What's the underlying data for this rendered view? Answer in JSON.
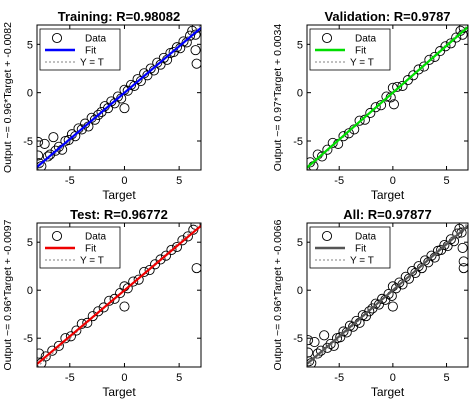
{
  "chart_data": [
    {
      "type": "scatter",
      "title": "Training: R=0.98082",
      "xlabel": "Target",
      "ylabel": "Output ~= 0.96*Target + -0.0082",
      "xlim": [
        -8,
        7
      ],
      "ylim": [
        -8,
        7
      ],
      "xticks": [
        -5,
        0,
        5
      ],
      "yticks": [
        -5,
        0,
        5
      ],
      "xtick_labels": [
        "-5",
        "0",
        "5"
      ],
      "ytick_labels": [
        "-5",
        "0",
        "5"
      ],
      "fit": {
        "slope": 0.96,
        "intercept": -0.0082,
        "color": "#0000ff"
      },
      "identity_line_color": "#808080",
      "legend": {
        "placement": "top-left",
        "entries": [
          "Data",
          "Fit",
          "Y = T"
        ]
      },
      "grid": false,
      "points": [
        [
          -7.9,
          -6.5
        ],
        [
          -7.9,
          -5.1
        ],
        [
          -7.8,
          -7.3
        ],
        [
          -7.6,
          -7.6
        ],
        [
          -7.3,
          -5.3
        ],
        [
          -7.0,
          -6.6
        ],
        [
          -6.8,
          -6.4
        ],
        [
          -6.5,
          -4.6
        ],
        [
          -6.3,
          -6.0
        ],
        [
          -6.0,
          -5.6
        ],
        [
          -5.7,
          -5.9
        ],
        [
          -5.4,
          -5.0
        ],
        [
          -5.1,
          -4.9
        ],
        [
          -4.8,
          -4.3
        ],
        [
          -4.5,
          -4.5
        ],
        [
          -4.2,
          -3.7
        ],
        [
          -3.9,
          -3.8
        ],
        [
          -3.6,
          -3.2
        ],
        [
          -3.3,
          -3.5
        ],
        [
          -3.0,
          -2.6
        ],
        [
          -2.7,
          -2.8
        ],
        [
          -2.4,
          -2.3
        ],
        [
          -2.1,
          -2.0
        ],
        [
          -1.8,
          -1.4
        ],
        [
          -1.5,
          -1.6
        ],
        [
          -1.2,
          -0.9
        ],
        [
          -0.9,
          -1.1
        ],
        [
          -0.6,
          -0.4
        ],
        [
          -0.3,
          -0.6
        ],
        [
          0.0,
          0.3
        ],
        [
          0.0,
          -1.6
        ],
        [
          0.3,
          0.2
        ],
        [
          0.6,
          0.8
        ],
        [
          0.9,
          0.7
        ],
        [
          1.2,
          1.4
        ],
        [
          1.5,
          1.2
        ],
        [
          1.8,
          2.0
        ],
        [
          2.1,
          1.8
        ],
        [
          2.4,
          2.5
        ],
        [
          2.7,
          2.3
        ],
        [
          3.0,
          3.1
        ],
        [
          3.3,
          2.9
        ],
        [
          3.6,
          3.6
        ],
        [
          3.9,
          3.4
        ],
        [
          4.2,
          4.1
        ],
        [
          4.5,
          4.2
        ],
        [
          4.8,
          4.7
        ],
        [
          5.1,
          4.6
        ],
        [
          5.4,
          5.3
        ],
        [
          5.7,
          5.2
        ],
        [
          6.0,
          5.9
        ],
        [
          6.2,
          6.4
        ],
        [
          6.5,
          6.0
        ],
        [
          6.5,
          4.4
        ],
        [
          6.6,
          3.0
        ],
        [
          6.6,
          6.7
        ]
      ]
    },
    {
      "type": "scatter",
      "title": "Validation: R=0.9787",
      "xlabel": "Target",
      "ylabel": "Output ~= 0.97*Target + 0.0034",
      "xlim": [
        -8,
        7
      ],
      "ylim": [
        -8,
        7
      ],
      "xticks": [
        -5,
        0,
        5
      ],
      "yticks": [
        -5,
        0,
        5
      ],
      "xtick_labels": [
        "-5",
        "0",
        "5"
      ],
      "ytick_labels": [
        "-5",
        "0",
        "5"
      ],
      "fit": {
        "slope": 0.97,
        "intercept": 0.0034,
        "color": "#00dd00"
      },
      "identity_line_color": "#808080",
      "legend": {
        "placement": "top-left",
        "entries": [
          "Data",
          "Fit",
          "Y = T"
        ]
      },
      "grid": false,
      "points": [
        [
          -7.7,
          -7.2
        ],
        [
          -7.4,
          -7.6
        ],
        [
          -7.0,
          -6.4
        ],
        [
          -6.6,
          -6.6
        ],
        [
          -6.1,
          -5.9
        ],
        [
          -5.6,
          -5.2
        ],
        [
          -5.1,
          -5.3
        ],
        [
          -4.6,
          -4.5
        ],
        [
          -4.1,
          -4.2
        ],
        [
          -3.6,
          -3.8
        ],
        [
          -3.1,
          -2.9
        ],
        [
          -2.6,
          -2.8
        ],
        [
          -2.1,
          -2.1
        ],
        [
          -1.6,
          -1.5
        ],
        [
          -1.1,
          -1.3
        ],
        [
          -0.6,
          -0.4
        ],
        [
          -0.2,
          -0.5
        ],
        [
          0.0,
          0.5
        ],
        [
          0.1,
          -1.2
        ],
        [
          0.4,
          0.6
        ],
        [
          0.9,
          0.7
        ],
        [
          1.4,
          1.3
        ],
        [
          1.9,
          1.8
        ],
        [
          2.4,
          2.4
        ],
        [
          2.9,
          2.7
        ],
        [
          3.4,
          3.4
        ],
        [
          3.9,
          3.7
        ],
        [
          4.4,
          4.3
        ],
        [
          4.9,
          4.8
        ],
        [
          5.4,
          5.1
        ],
        [
          5.9,
          5.7
        ],
        [
          6.3,
          6.4
        ],
        [
          6.5,
          6.0
        ],
        [
          6.6,
          6.7
        ]
      ]
    },
    {
      "type": "scatter",
      "title": "Test: R=0.96772",
      "xlabel": "Target",
      "ylabel": "Output ~= 0.96*Target + -0.0097",
      "xlim": [
        -8,
        7
      ],
      "ylim": [
        -8,
        7
      ],
      "xticks": [
        -5,
        0,
        5
      ],
      "yticks": [
        -5,
        0,
        5
      ],
      "xtick_labels": [
        "-5",
        "0",
        "5"
      ],
      "ytick_labels": [
        "-5",
        "0",
        "5"
      ],
      "fit": {
        "slope": 0.96,
        "intercept": -0.0097,
        "color": "#ee0000"
      },
      "identity_line_color": "#808080",
      "legend": {
        "placement": "top-left",
        "entries": [
          "Data",
          "Fit",
          "Y = T"
        ]
      },
      "grid": false,
      "points": [
        [
          -7.8,
          -6.6
        ],
        [
          -7.6,
          -7.6
        ],
        [
          -7.2,
          -6.9
        ],
        [
          -6.6,
          -6.3
        ],
        [
          -6.0,
          -5.8
        ],
        [
          -5.4,
          -5.0
        ],
        [
          -4.9,
          -4.8
        ],
        [
          -4.4,
          -4.2
        ],
        [
          -3.9,
          -3.5
        ],
        [
          -3.4,
          -3.4
        ],
        [
          -2.9,
          -2.7
        ],
        [
          -2.4,
          -2.2
        ],
        [
          -1.9,
          -1.8
        ],
        [
          -1.4,
          -1.1
        ],
        [
          -0.9,
          -0.9
        ],
        [
          -0.4,
          -0.3
        ],
        [
          0.0,
          0.4
        ],
        [
          0.0,
          -1.7
        ],
        [
          0.3,
          0.2
        ],
        [
          0.8,
          0.9
        ],
        [
          1.3,
          1.1
        ],
        [
          1.8,
          1.9
        ],
        [
          2.3,
          2.1
        ],
        [
          2.8,
          2.7
        ],
        [
          3.3,
          3.2
        ],
        [
          3.8,
          3.6
        ],
        [
          4.3,
          4.2
        ],
        [
          4.8,
          4.5
        ],
        [
          5.3,
          5.2
        ],
        [
          5.8,
          5.6
        ],
        [
          6.3,
          6.3
        ],
        [
          6.5,
          6.8
        ],
        [
          6.6,
          2.3
        ]
      ]
    },
    {
      "type": "scatter",
      "title": "All: R=0.97877",
      "xlabel": "Target",
      "ylabel": "Output ~= 0.96*Target + -0.0066",
      "xlim": [
        -8,
        7
      ],
      "ylim": [
        -8,
        7
      ],
      "xticks": [
        -5,
        0,
        5
      ],
      "yticks": [
        -5,
        0,
        5
      ],
      "xtick_labels": [
        "-5",
        "0",
        "5"
      ],
      "ytick_labels": [
        "-5",
        "0",
        "5"
      ],
      "fit": {
        "slope": 0.96,
        "intercept": -0.0066,
        "color": "#555555"
      },
      "identity_line_color": "#808080",
      "legend": {
        "placement": "top-left",
        "entries": [
          "Data",
          "Fit",
          "Y = T"
        ]
      },
      "grid": false,
      "points": [
        [
          -7.9,
          -6.5
        ],
        [
          -7.9,
          -5.2
        ],
        [
          -7.8,
          -7.4
        ],
        [
          -7.6,
          -7.6
        ],
        [
          -7.3,
          -5.4
        ],
        [
          -7.0,
          -6.6
        ],
        [
          -6.7,
          -6.3
        ],
        [
          -6.4,
          -4.7
        ],
        [
          -6.1,
          -6.0
        ],
        [
          -5.8,
          -5.6
        ],
        [
          -5.5,
          -5.8
        ],
        [
          -5.2,
          -5.0
        ],
        [
          -4.9,
          -4.9
        ],
        [
          -4.6,
          -4.3
        ],
        [
          -4.3,
          -4.4
        ],
        [
          -4.0,
          -3.7
        ],
        [
          -3.7,
          -3.8
        ],
        [
          -3.4,
          -3.2
        ],
        [
          -3.1,
          -3.4
        ],
        [
          -2.8,
          -2.6
        ],
        [
          -2.5,
          -2.7
        ],
        [
          -2.2,
          -2.2
        ],
        [
          -1.9,
          -1.9
        ],
        [
          -1.6,
          -1.4
        ],
        [
          -1.3,
          -1.5
        ],
        [
          -1.0,
          -0.9
        ],
        [
          -0.7,
          -1.0
        ],
        [
          -0.4,
          -0.4
        ],
        [
          -0.1,
          -0.6
        ],
        [
          0.0,
          0.4
        ],
        [
          0.0,
          -1.7
        ],
        [
          0.3,
          0.2
        ],
        [
          0.6,
          0.8
        ],
        [
          0.9,
          0.6
        ],
        [
          1.2,
          1.4
        ],
        [
          1.5,
          1.2
        ],
        [
          1.8,
          2.0
        ],
        [
          2.1,
          1.8
        ],
        [
          2.4,
          2.5
        ],
        [
          2.7,
          2.3
        ],
        [
          3.0,
          3.1
        ],
        [
          3.3,
          2.9
        ],
        [
          3.6,
          3.6
        ],
        [
          3.9,
          3.4
        ],
        [
          4.2,
          4.1
        ],
        [
          4.5,
          4.2
        ],
        [
          4.8,
          4.7
        ],
        [
          5.1,
          4.6
        ],
        [
          5.4,
          5.3
        ],
        [
          5.7,
          5.1
        ],
        [
          6.0,
          5.9
        ],
        [
          6.2,
          6.4
        ],
        [
          6.4,
          6.0
        ],
        [
          6.5,
          4.4
        ],
        [
          6.6,
          3.0
        ],
        [
          6.6,
          2.3
        ],
        [
          6.6,
          6.8
        ]
      ]
    }
  ]
}
